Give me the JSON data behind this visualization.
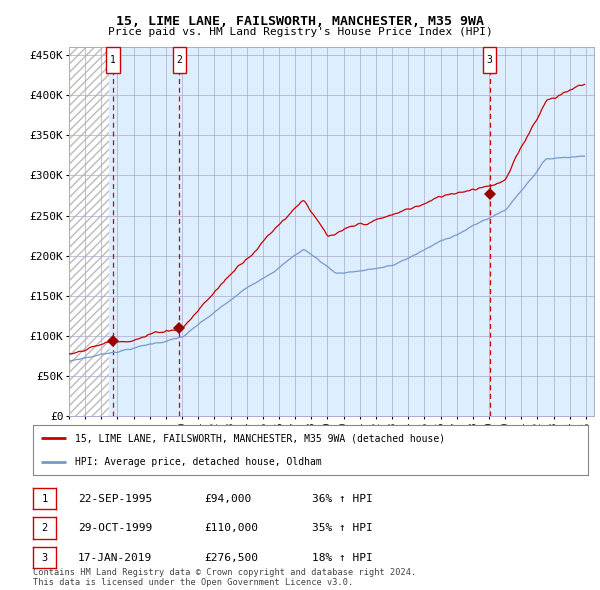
{
  "title1": "15, LIME LANE, FAILSWORTH, MANCHESTER, M35 9WA",
  "title2": "Price paid vs. HM Land Registry's House Price Index (HPI)",
  "ylabel_ticks": [
    "£0",
    "£50K",
    "£100K",
    "£150K",
    "£200K",
    "£250K",
    "£300K",
    "£350K",
    "£400K",
    "£450K"
  ],
  "ytick_values": [
    0,
    50000,
    100000,
    150000,
    200000,
    250000,
    300000,
    350000,
    400000,
    450000
  ],
  "ylim": [
    0,
    460000
  ],
  "xlim_start": 1993,
  "xlim_end": 2025.5,
  "sale_year_nums": [
    1995.72,
    1999.83,
    2019.04
  ],
  "sale_prices": [
    94000,
    110000,
    276500
  ],
  "sale_labels": [
    "1",
    "2",
    "3"
  ],
  "sale_pct": [
    "36% ↑ HPI",
    "35% ↑ HPI",
    "18% ↑ HPI"
  ],
  "sale_date_strs": [
    "22-SEP-1995",
    "29-OCT-1999",
    "17-JAN-2019"
  ],
  "sale_price_strs": [
    "£94,000",
    "£110,000",
    "£276,500"
  ],
  "legend_line1": "15, LIME LANE, FAILSWORTH, MANCHESTER, M35 9WA (detached house)",
  "legend_line2": "HPI: Average price, detached house, Oldham",
  "footnote1": "Contains HM Land Registry data © Crown copyright and database right 2024.",
  "footnote2": "This data is licensed under the Open Government Licence v3.0.",
  "line_color_red": "#cc0000",
  "line_color_blue": "#7799cc",
  "bg_hatch_color": "#cccccc",
  "bg_main_color": "#ddeeff",
  "grid_color": "#aaaacc",
  "dashed_line_color": "#cc0000",
  "marker_color": "#990000",
  "box_edge_color": "#cc0000",
  "hatch_end": 1995.5
}
